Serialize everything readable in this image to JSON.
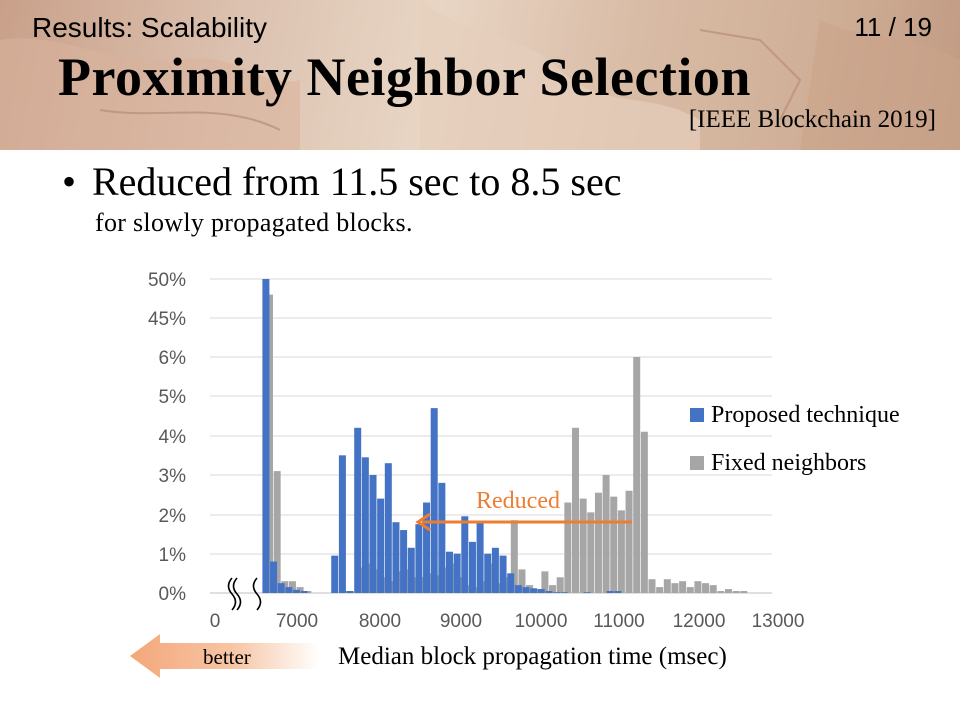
{
  "slide": {
    "breadcrumb": "Results: Scalability",
    "page_number": "11 / 19",
    "title": "Proximity Neighbor Selection",
    "citation": "[IEEE Blockchain 2019]",
    "bullet_main": "Reduced from 11.5 sec to 8.5 sec",
    "bullet_sub": "for slowly propagated blocks.",
    "better_label": "better",
    "reduced_label": "Reduced"
  },
  "colors": {
    "proposed": "#4472c4",
    "fixed": "#a6a6a6",
    "accent": "#ed7d31",
    "grid": "#d9d9d9"
  },
  "chart_data": {
    "type": "bar",
    "xlabel": "Median block propagation time (msec)",
    "ylabel": "",
    "x_ticks": [
      "0",
      "7000",
      "8000",
      "9000",
      "10000",
      "11000",
      "12000",
      "13000"
    ],
    "y_ticks": [
      "0%",
      "1%",
      "2%",
      "3%",
      "4%",
      "5%",
      "6%",
      "45%",
      "50%"
    ],
    "axis_break": true,
    "bin_width_msec": 100,
    "x_start_msec": 6700,
    "legend_position": "right",
    "series": [
      {
        "name": "Proposed technique",
        "values": [
          50,
          0.8,
          0.25,
          0.15,
          0.08,
          0.05,
          0,
          0,
          0,
          0.95,
          3.5,
          0.05,
          4.2,
          3.45,
          3.0,
          2.4,
          3.3,
          1.8,
          1.6,
          1.15,
          1.75,
          2.3,
          4.7,
          2.8,
          1.05,
          1.0,
          1.95,
          1.3,
          1.8,
          1.0,
          1.15,
          0.95,
          0.5,
          0.2,
          0.15,
          0.12,
          0.1,
          0.05,
          0.02,
          0.02,
          0,
          0,
          0.02,
          0,
          0,
          0.05,
          0.05,
          0,
          0,
          0,
          0,
          0,
          0,
          0,
          0,
          0,
          0,
          0,
          0,
          0,
          0,
          0,
          0
        ]
      },
      {
        "name": "Fixed neighbors",
        "values": [
          48,
          3.1,
          0.3,
          0.3,
          0.15,
          0.05,
          0,
          0,
          0,
          0,
          0.05,
          0,
          0.65,
          0.75,
          0.6,
          0.4,
          0.3,
          0.55,
          0.6,
          0.4,
          0.4,
          0.5,
          0.45,
          0.65,
          0.75,
          0.4,
          0.2,
          0.15,
          0.3,
          0.75,
          0.25,
          0.4,
          1.85,
          0.6,
          0.2,
          0.1,
          0.55,
          0.2,
          0.4,
          2.3,
          4.2,
          2.4,
          2.05,
          2.55,
          3.0,
          2.45,
          2.1,
          2.6,
          6.0,
          4.1,
          0.35,
          0.15,
          0.35,
          0.25,
          0.3,
          0.15,
          0.3,
          0.25,
          0.2,
          0.05,
          0.1,
          0.05,
          0.05
        ]
      }
    ]
  }
}
